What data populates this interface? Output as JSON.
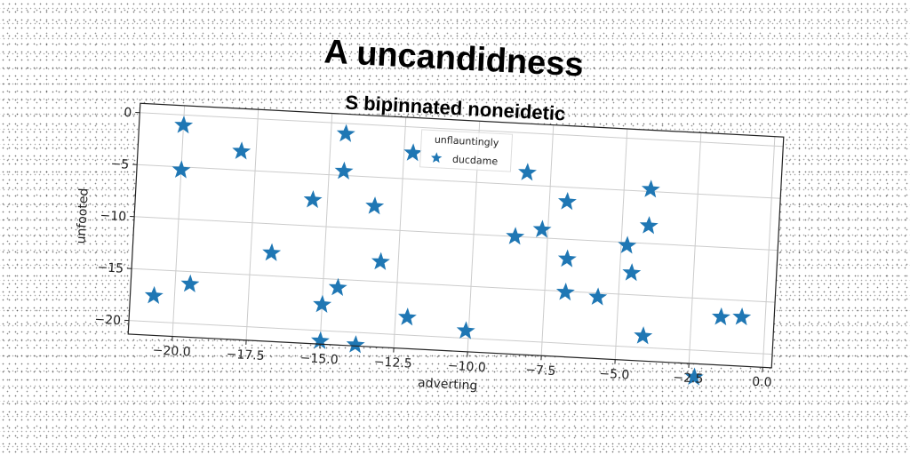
{
  "chart_data": {
    "type": "scatter",
    "title": "A uncandidness",
    "subtitle": "S bipinnated noneidetic",
    "xlabel": "adverting",
    "ylabel": "unfooted",
    "xlim": [
      -21.5,
      0.3
    ],
    "ylim": [
      -21.3,
      0.9
    ],
    "xticks": [
      -20.0,
      -17.5,
      -15.0,
      -12.5,
      -10.0,
      -7.5,
      -5.0,
      -2.5,
      0.0
    ],
    "xtick_labels": [
      "−20.0",
      "−17.5",
      "−15.0",
      "−12.5",
      "−10.0",
      "−7.5",
      "−5.0",
      "−2.5",
      "0.0"
    ],
    "yticks": [
      0,
      -5,
      -10,
      -15,
      -20
    ],
    "ytick_labels": [
      "0",
      "−5",
      "−10",
      "−15",
      "−20"
    ],
    "grid": true,
    "marker": "star",
    "color": "#1f77b4",
    "legend": {
      "position": "upper-center",
      "title": "unflauntingly",
      "entries": [
        "ducdame"
      ]
    },
    "series": [
      {
        "name": "ducdame",
        "points": [
          [
            -20.0,
            -1.0
          ],
          [
            -20.0,
            -5.3
          ],
          [
            -18.0,
            -3.2
          ],
          [
            -20.7,
            -17.5
          ],
          [
            -19.5,
            -16.2
          ],
          [
            -16.8,
            -12.8
          ],
          [
            -15.5,
            -7.5
          ],
          [
            -15.0,
            -17.5
          ],
          [
            -15.0,
            -21.0
          ],
          [
            -14.5,
            -1.0
          ],
          [
            -14.5,
            -4.6
          ],
          [
            -14.5,
            -15.8
          ],
          [
            -13.8,
            -21.2
          ],
          [
            -13.4,
            -7.8
          ],
          [
            -13.1,
            -13.1
          ],
          [
            -12.2,
            -2.5
          ],
          [
            -12.1,
            -18.3
          ],
          [
            -10.1,
            -19.3
          ],
          [
            -8.6,
            -10.0
          ],
          [
            -8.3,
            -3.8
          ],
          [
            -7.7,
            -9.2
          ],
          [
            -6.9,
            -6.4
          ],
          [
            -6.8,
            -11.9
          ],
          [
            -6.8,
            -15.1
          ],
          [
            -5.7,
            -15.4
          ],
          [
            -4.8,
            -10.3
          ],
          [
            -4.6,
            -12.9
          ],
          [
            -4.1,
            -4.8
          ],
          [
            -4.1,
            -8.3
          ],
          [
            -4.1,
            -18.9
          ],
          [
            -2.3,
            -22.6
          ],
          [
            -1.5,
            -16.7
          ],
          [
            -0.8,
            -16.6
          ]
        ]
      }
    ]
  }
}
